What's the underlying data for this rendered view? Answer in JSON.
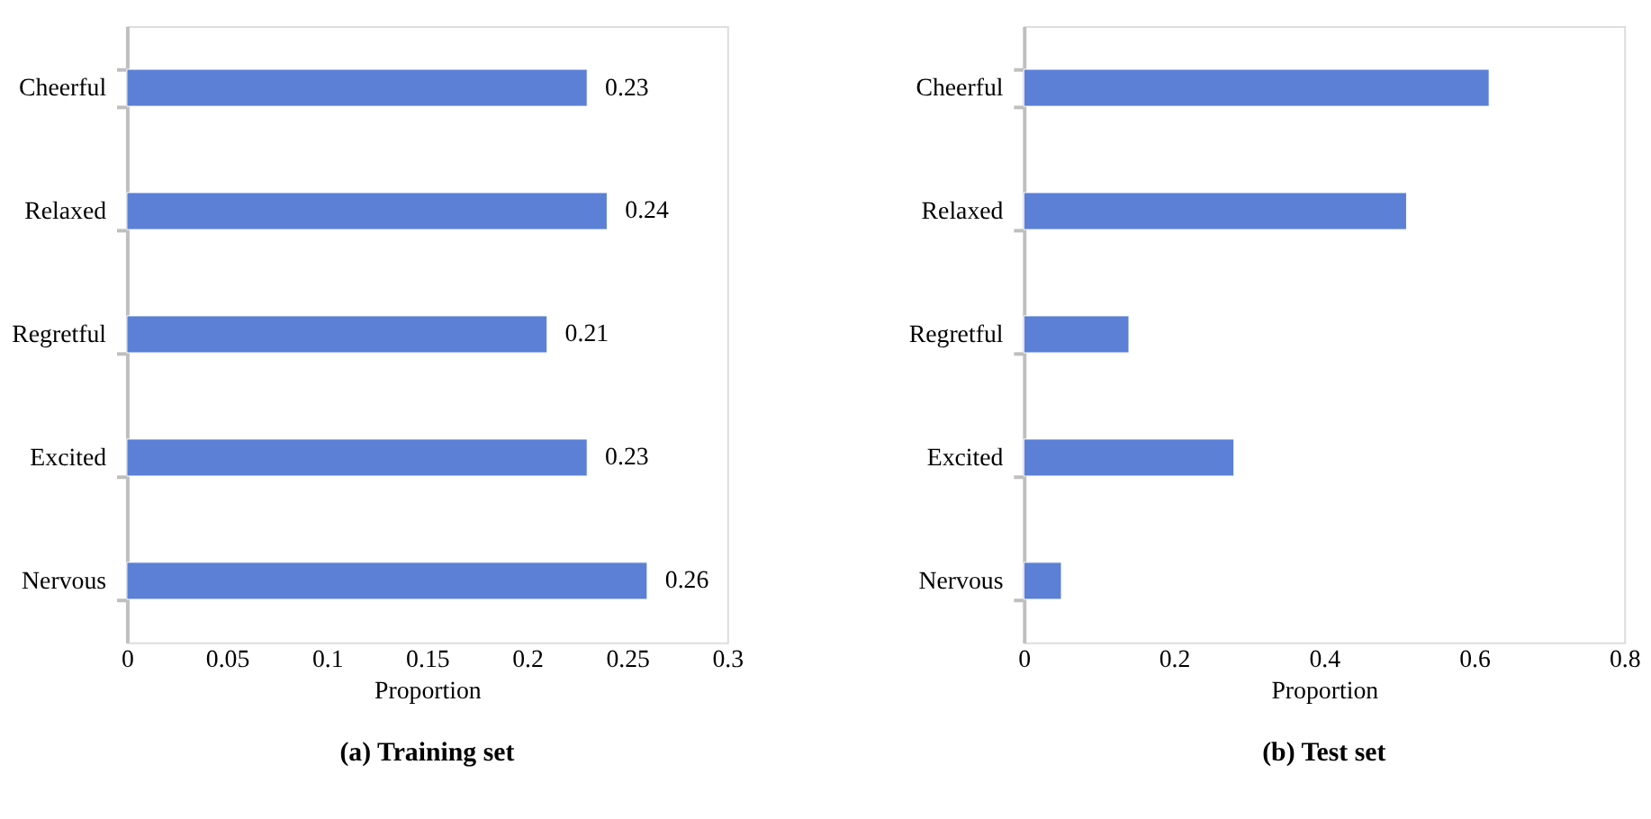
{
  "chart_data": [
    {
      "type": "bar",
      "orientation": "horizontal",
      "title": "(a) Training set",
      "xlabel": "Proportion",
      "categories": [
        "Cheerful",
        "Relaxed",
        "Regretful",
        "Excited",
        "Nervous"
      ],
      "values": [
        0.23,
        0.24,
        0.21,
        0.23,
        0.26
      ],
      "color": "#5b80d6",
      "xlim": [
        0,
        0.3
      ],
      "xticks": [
        0,
        0.05,
        0.1,
        0.15,
        0.2,
        0.25,
        0.3
      ],
      "data_labels": true,
      "grid": false
    },
    {
      "type": "bar",
      "orientation": "horizontal",
      "title": "(b) Test set",
      "xlabel": "Proportion",
      "categories": [
        "Cheerful",
        "Relaxed",
        "Regretful",
        "Excited",
        "Nervous"
      ],
      "values": [
        0.62,
        0.51,
        0.14,
        0.28,
        0.05
      ],
      "color": "#5b80d6",
      "xlim": [
        0,
        0.8
      ],
      "xticks": [
        0,
        0.2,
        0.4,
        0.6,
        0.8
      ],
      "grid": false
    }
  ]
}
